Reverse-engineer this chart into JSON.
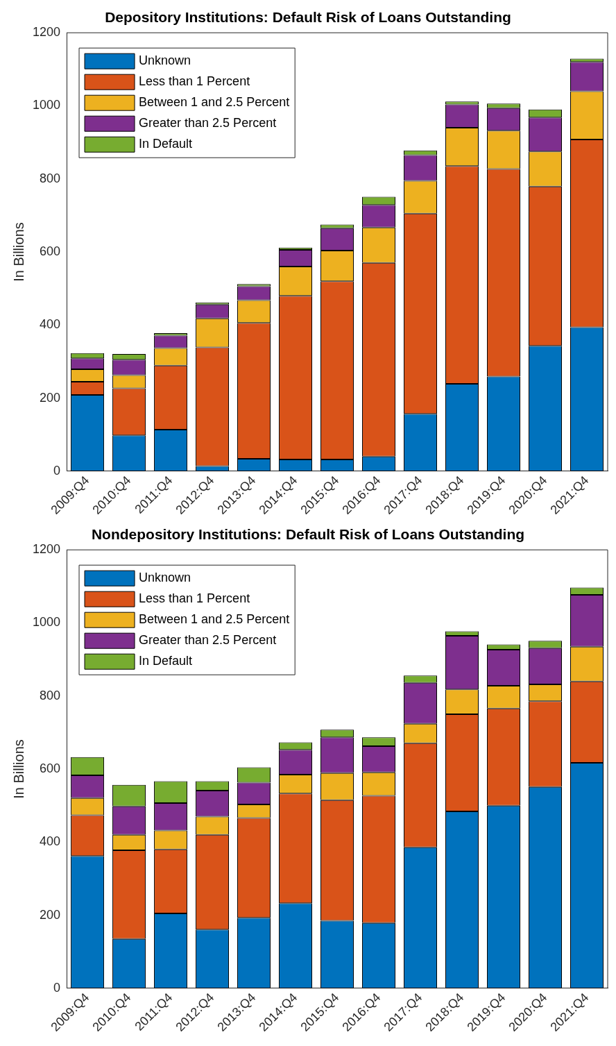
{
  "chart_data": [
    {
      "type": "bar",
      "title": "Depository Institutions: Default Risk of Loans Outstanding",
      "ylabel": "In Billions",
      "stacked": true,
      "legend": "top left",
      "grid": false,
      "categories": [
        "2009:Q4",
        "2010:Q4",
        "2011:Q4",
        "2012:Q4",
        "2013:Q4",
        "2014:Q4",
        "2015:Q4",
        "2016:Q4",
        "2017:Q4",
        "2018:Q4",
        "2019:Q4",
        "2020:Q4",
        "2021:Q4"
      ],
      "ylim": [
        0,
        1200
      ],
      "yticks": [
        0,
        200,
        400,
        600,
        800,
        1000,
        1200
      ],
      "series": [
        {
          "name": "Unknown",
          "color": "#0072bd",
          "values": [
            209,
            98,
            114,
            14,
            34,
            32,
            32,
            40,
            157,
            239,
            259,
            343,
            394
          ]
        },
        {
          "name": "Less than 1 Percent",
          "color": "#d95319",
          "values": [
            36,
            129,
            175,
            325,
            372,
            448,
            488,
            530,
            548,
            596,
            568,
            436,
            514
          ]
        },
        {
          "name": "Between 1 and 2.5 Percent",
          "color": "#edb120",
          "values": [
            34,
            36,
            48,
            79,
            62,
            80,
            84,
            97,
            90,
            105,
            105,
            96,
            132
          ]
        },
        {
          "name": "Greater than 2.5 Percent",
          "color": "#7e2f8e",
          "values": [
            30,
            42,
            34,
            38,
            38,
            46,
            61,
            62,
            70,
            64,
            62,
            93,
            80
          ]
        },
        {
          "name": "In Default",
          "color": "#77ac30",
          "values": [
            14,
            16,
            7,
            6,
            6,
            6,
            10,
            22,
            13,
            8,
            12,
            22,
            9
          ]
        }
      ]
    },
    {
      "type": "bar",
      "title": "Nondepository Institutions: Default Risk of Loans Outstanding",
      "ylabel": "In Billions",
      "stacked": true,
      "legend": "top left",
      "grid": false,
      "categories": [
        "2009:Q4",
        "2010:Q4",
        "2011:Q4",
        "2012:Q4",
        "2013:Q4",
        "2014:Q4",
        "2015:Q4",
        "2016:Q4",
        "2017:Q4",
        "2018:Q4",
        "2019:Q4",
        "2020:Q4",
        "2021:Q4"
      ],
      "ylim": [
        0,
        1200
      ],
      "yticks": [
        0,
        200,
        400,
        600,
        800,
        1000,
        1200
      ],
      "series": [
        {
          "name": "Unknown",
          "color": "#0072bd",
          "values": [
            362,
            135,
            205,
            161,
            193,
            233,
            185,
            179,
            386,
            484,
            500,
            551,
            617
          ]
        },
        {
          "name": "Less than 1 Percent",
          "color": "#d95319",
          "values": [
            112,
            243,
            175,
            259,
            273,
            300,
            330,
            348,
            285,
            266,
            266,
            235,
            223
          ]
        },
        {
          "name": "Between 1 and 2.5 Percent",
          "color": "#edb120",
          "values": [
            47,
            42,
            52,
            50,
            37,
            52,
            74,
            64,
            53,
            68,
            62,
            46,
            95
          ]
        },
        {
          "name": "Greater than 2.5 Percent",
          "color": "#7e2f8e",
          "values": [
            62,
            78,
            75,
            71,
            60,
            68,
            98,
            72,
            112,
            147,
            99,
            99,
            142
          ]
        },
        {
          "name": "In Default",
          "color": "#77ac30",
          "values": [
            50,
            59,
            60,
            26,
            42,
            20,
            21,
            24,
            20,
            12,
            14,
            20,
            20
          ]
        }
      ]
    }
  ]
}
